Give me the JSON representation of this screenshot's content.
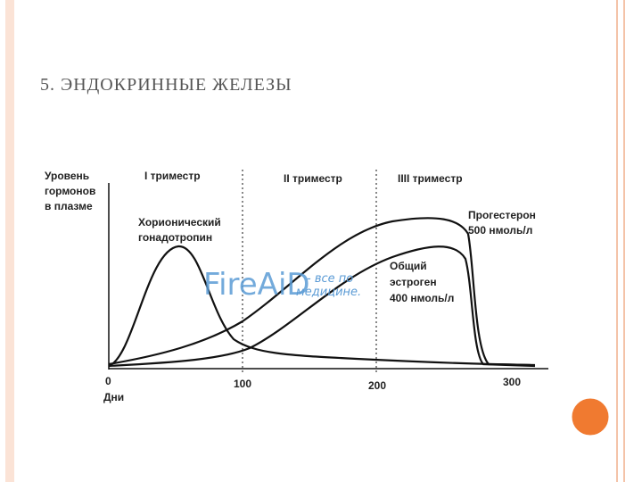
{
  "header": {
    "title": "5. ЭНДОКРИННЫЕ ЖЕЛЕЗЫ"
  },
  "figure": {
    "y_axis_label": [
      "Уровень",
      "гормонов",
      "в плазме"
    ],
    "trimesters": [
      "I триместр",
      "II триместр",
      "IIII триместр"
    ],
    "curve_labels": {
      "chorionic": [
        "Хорионический",
        "гонадотропин"
      ],
      "progesterone": [
        "Прогестерон",
        "500 нмоль/л"
      ],
      "estrogen": [
        "Общий",
        "эстроген",
        "400 нмоль/л"
      ]
    },
    "x_tick_labels": [
      "0",
      "100",
      "200",
      "300"
    ],
    "x_axis_label": "Дни",
    "watermark": {
      "brand": "FireAiD",
      "tagline": [
        "- все по",
        "медицине."
      ]
    }
  }
}
